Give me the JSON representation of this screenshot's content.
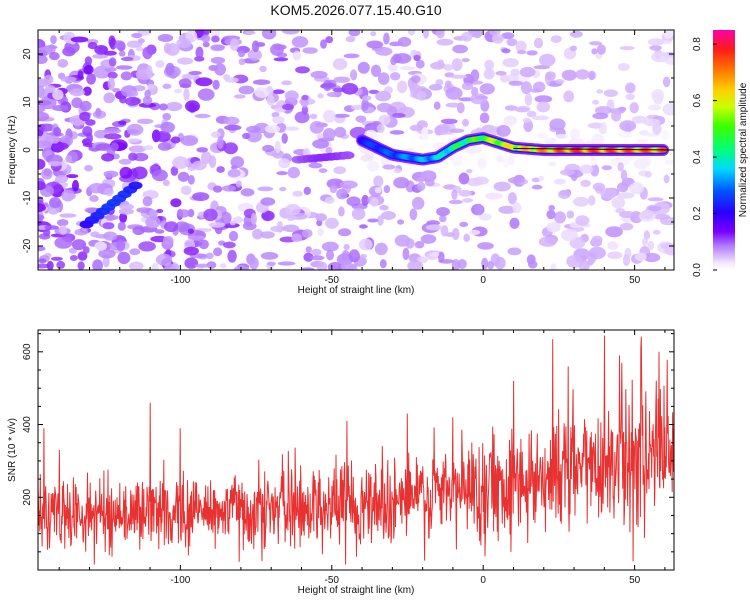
{
  "title": "KOM5.2026.077.15.40.G10",
  "chart_data": [
    {
      "type": "heatmap",
      "xlabel": "Height of straight line (km)",
      "ylabel": "Frequency (Hz)",
      "xlim": [
        -147,
        63
      ],
      "ylim": [
        -25,
        25
      ],
      "xticks": [
        -100,
        -50,
        0,
        50
      ],
      "yticks": [
        -20,
        -10,
        0,
        10,
        20
      ],
      "xtick_labels": [
        "-100",
        "-50",
        "0",
        "50"
      ],
      "ytick_labels": [
        "-20",
        "-10",
        "0",
        "10",
        "20"
      ],
      "colorbar": {
        "label": "Normalized spectral amplitude",
        "range": [
          0.0,
          0.85
        ],
        "ticks": [
          0.0,
          0.2,
          0.4,
          0.6,
          0.8
        ],
        "tick_labels": [
          "0.0",
          "0.2",
          "0.4",
          "0.6",
          "0.8"
        ]
      },
      "ridge": {
        "description_points": [
          [
            -40,
            2
          ],
          [
            -35,
            0.5
          ],
          [
            -30,
            -1
          ],
          [
            -25,
            -1.5
          ],
          [
            -20,
            -2
          ],
          [
            -15,
            -1.5
          ],
          [
            -10,
            0.5
          ],
          [
            -5,
            2
          ],
          [
            0,
            2.5
          ],
          [
            5,
            1.5
          ],
          [
            10,
            0.5
          ],
          [
            20,
            0
          ],
          [
            30,
            0
          ],
          [
            60,
            0
          ]
        ],
        "amplitude": [
          0.25,
          0.28,
          0.3,
          0.33,
          0.35,
          0.38,
          0.45,
          0.5,
          0.55,
          0.6,
          0.65,
          0.72,
          0.8,
          0.75
        ]
      },
      "secondary_features": [
        {
          "x": -122,
          "y": -11,
          "amplitude": 0.25
        },
        {
          "x": -52,
          "y": -1.5,
          "amplitude": 0.12
        }
      ]
    },
    {
      "type": "line",
      "xlabel": "Height of straight line (km)",
      "ylabel": "SNR (10 * v/v)",
      "xlim": [
        -147,
        63
      ],
      "ylim": [
        0,
        660
      ],
      "xticks": [
        -100,
        -50,
        0,
        50
      ],
      "yticks": [
        200,
        400,
        600
      ],
      "xtick_labels": [
        "-100",
        "-50",
        "0",
        "50"
      ],
      "ytick_labels": [
        "200",
        "400",
        "600"
      ],
      "series": [
        {
          "name": "SNR",
          "color": "#e83232",
          "x": [
            -147,
            -120,
            -100,
            -80,
            -60,
            -40,
            -20,
            0,
            20,
            40,
            63
          ],
          "mean": [
            150,
            155,
            160,
            165,
            175,
            185,
            200,
            230,
            260,
            300,
            330
          ],
          "noise_amplitude": [
            80,
            80,
            85,
            90,
            95,
            100,
            110,
            120,
            130,
            150,
            150
          ],
          "peaks": [
            [
              -145,
              390
            ],
            [
              -140,
              330
            ],
            [
              -110,
              460
            ],
            [
              -100,
              390
            ],
            [
              -45,
              410
            ],
            [
              -25,
              430
            ],
            [
              -10,
              420
            ],
            [
              10,
              520
            ],
            [
              23,
              635
            ],
            [
              28,
              560
            ],
            [
              40,
              645
            ],
            [
              45,
              590
            ],
            [
              52,
              610
            ],
            [
              58,
              600
            ],
            [
              63,
              400
            ]
          ]
        }
      ]
    }
  ],
  "colors": {
    "ridge_low": "#1a1aff",
    "ridge_high": "#e81a1a",
    "background_noise": "#8a2be2",
    "snr_line": "#e83232"
  }
}
